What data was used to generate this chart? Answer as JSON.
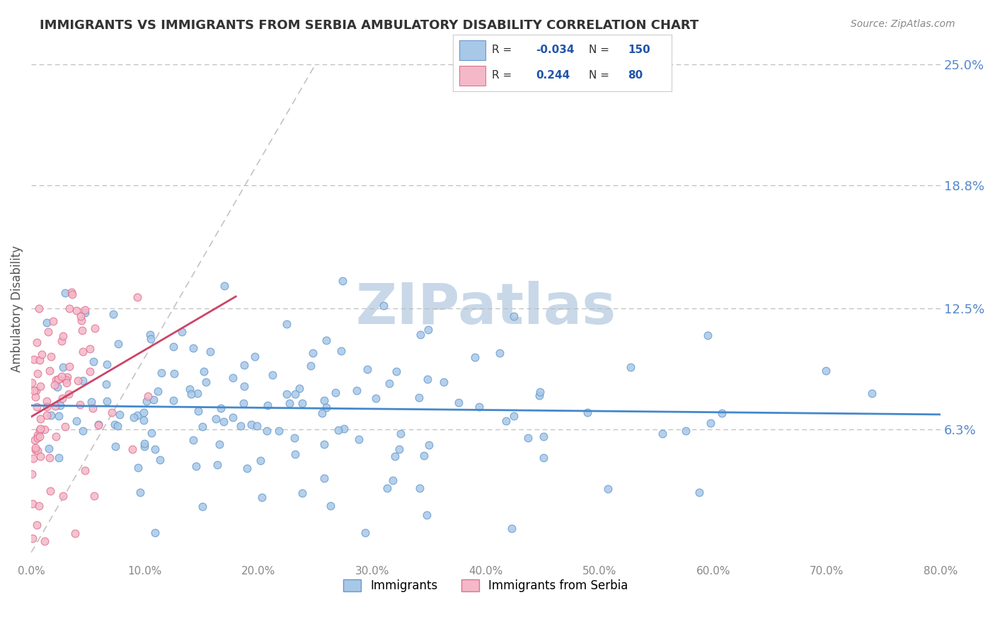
{
  "title": "IMMIGRANTS VS IMMIGRANTS FROM SERBIA AMBULATORY DISABILITY CORRELATION CHART",
  "source": "Source: ZipAtlas.com",
  "xlabel": "",
  "ylabel": "Ambulatory Disability",
  "x_min": 0.0,
  "x_max": 0.8,
  "y_min": 0.0,
  "y_max": 0.25,
  "y_ticks": [
    0.063,
    0.125,
    0.188,
    0.25
  ],
  "y_tick_labels": [
    "6.3%",
    "12.5%",
    "18.8%",
    "25.0%"
  ],
  "x_ticks": [
    0.0,
    0.1,
    0.2,
    0.3,
    0.4,
    0.5,
    0.6,
    0.7,
    0.8
  ],
  "x_tick_labels": [
    "0.0%",
    "10.0%",
    "20.0%",
    "30.0%",
    "40.0%",
    "50.0%",
    "60.0%",
    "70.0%",
    "80.0%"
  ],
  "blue_R": -0.034,
  "blue_N": 150,
  "pink_R": 0.244,
  "pink_N": 80,
  "blue_color": "#a8c8e8",
  "blue_edge_color": "#6699cc",
  "pink_color": "#f4b8c8",
  "pink_edge_color": "#e07090",
  "blue_line_color": "#4488cc",
  "pink_line_color": "#cc4466",
  "diag_line_color": "#aaaaaa",
  "background_color": "#ffffff",
  "watermark_text": "ZIPatlas",
  "watermark_color": "#c8d8e8",
  "title_color": "#333333",
  "axis_label_color": "#555555",
  "tick_label_color": "#5588cc",
  "legend_R_color": "#2255aa",
  "legend_N_color": "#2255aa",
  "seed": 42
}
